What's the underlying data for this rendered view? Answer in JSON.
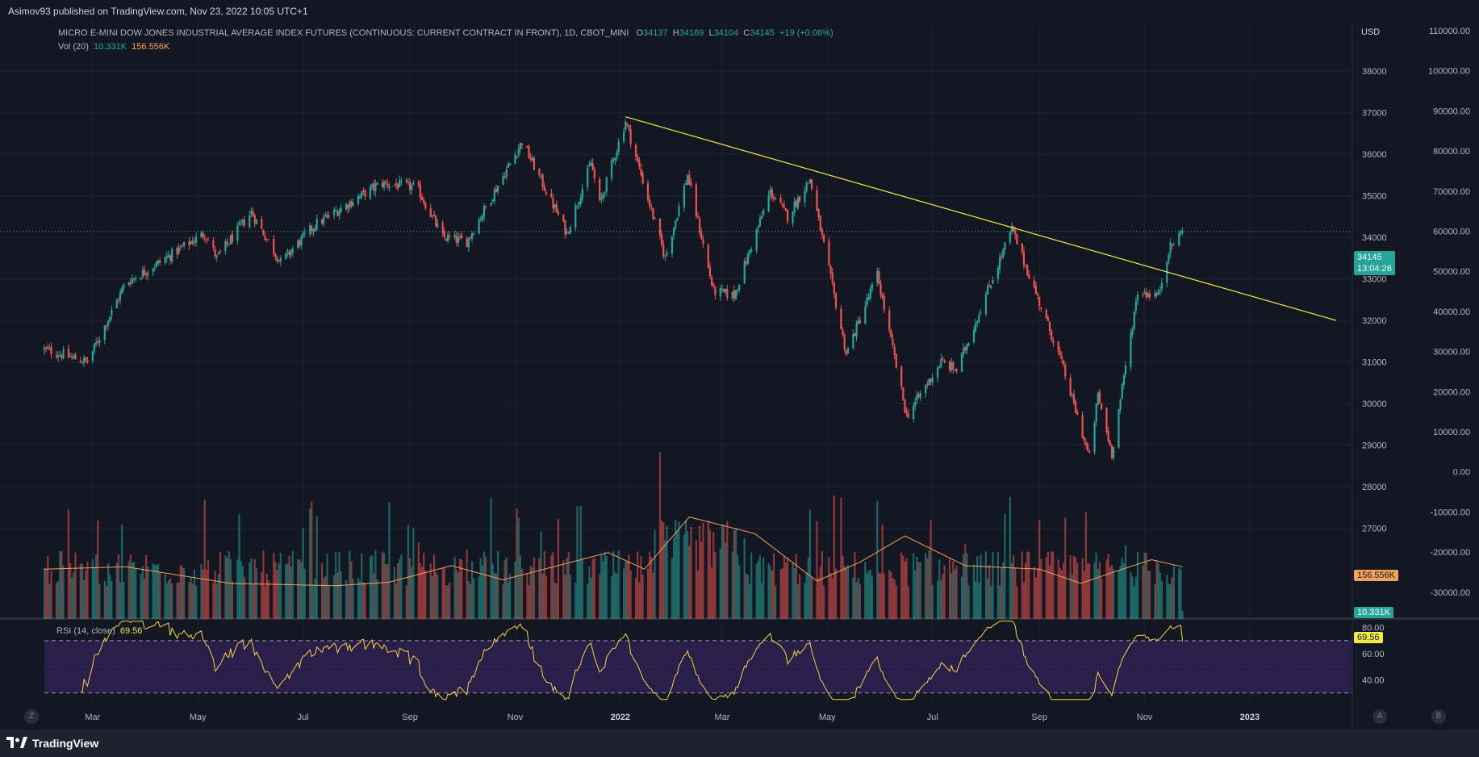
{
  "publish_info": "Asimov93 published on TradingView.com, Nov 23, 2022 10:05 UTC+1",
  "legend": {
    "symbol": "MICRO E-MINI DOW JONES INDUSTRIAL AVERAGE INDEX FUTURES (CONTINUOUS: CURRENT CONTRACT IN FRONT), 1D, CBOT_MINI",
    "o_label": "O",
    "o_value": "34137",
    "h_label": "H",
    "h_value": "34169",
    "l_label": "L",
    "l_value": "34104",
    "c_label": "C",
    "c_value": "34145",
    "change": "+19 (+0.06%)",
    "vol_label": "Vol (20)",
    "vol_value": "10.331K",
    "vol_ma_value": "156.556K",
    "rsi_label": "RSI (14, close)",
    "rsi_value": "69.56"
  },
  "price_tag": {
    "price": "34145",
    "countdown": "13:04:26"
  },
  "volume_tags": {
    "ma": "156.556K",
    "vol": "10.331K"
  },
  "rsi_tag": "69.56",
  "currency": "USD",
  "corner_buttons": {
    "left": "Z",
    "auto": "A",
    "right": "B"
  },
  "footer": {
    "brand": "TradingView"
  },
  "colors": {
    "background": "#131722",
    "up": "#26a69a",
    "down": "#ef5350",
    "trendline": "#f5e94a",
    "vol_ma": "#f7a25a",
    "rsi_line": "#f5d442",
    "rsi_band": "#2a1e4a"
  },
  "chart_data": [
    {
      "type": "candlestick",
      "title": "",
      "y_axis_labels": [
        "38000",
        "37000",
        "36000",
        "35000",
        "34000",
        "33000",
        "32000",
        "31000",
        "30000",
        "29000",
        "28000",
        "27000"
      ],
      "ylim": [
        26600,
        38800
      ],
      "x_axis_labels": [
        "Mar",
        "May",
        "Jul",
        "Sep",
        "Nov",
        "2022",
        "Mar",
        "May",
        "Jul",
        "Sep",
        "Nov",
        "2023"
      ],
      "x_labels_month_index": [
        2,
        4,
        6,
        8,
        10,
        12,
        14,
        16,
        18,
        20,
        22,
        24
      ],
      "x_start": "2021-02-01",
      "x_end": "2023-03-01",
      "price_anchor_closes": [
        {
          "date": "2021-02-01",
          "close": 31300
        },
        {
          "date": "2021-02-26",
          "close": 31000
        },
        {
          "date": "2021-03-05",
          "close": 31600
        },
        {
          "date": "2021-03-20",
          "close": 32900
        },
        {
          "date": "2021-04-05",
          "close": 33300
        },
        {
          "date": "2021-05-05",
          "close": 34100
        },
        {
          "date": "2021-05-12",
          "close": 33500
        },
        {
          "date": "2021-06-01",
          "close": 34600
        },
        {
          "date": "2021-06-18",
          "close": 33400
        },
        {
          "date": "2021-07-08",
          "close": 34300
        },
        {
          "date": "2021-08-15",
          "close": 35300
        },
        {
          "date": "2021-09-05",
          "close": 35200
        },
        {
          "date": "2021-09-20",
          "close": 34000
        },
        {
          "date": "2021-10-04",
          "close": 33900
        },
        {
          "date": "2021-11-05",
          "close": 36300
        },
        {
          "date": "2021-12-01",
          "close": 34100
        },
        {
          "date": "2021-12-15",
          "close": 35800
        },
        {
          "date": "2021-12-20",
          "close": 34800
        },
        {
          "date": "2022-01-04",
          "close": 36800
        },
        {
          "date": "2022-01-27",
          "close": 33500
        },
        {
          "date": "2022-02-09",
          "close": 35500
        },
        {
          "date": "2022-02-24",
          "close": 32700
        },
        {
          "date": "2022-03-08",
          "close": 32600
        },
        {
          "date": "2022-03-29",
          "close": 35100
        },
        {
          "date": "2022-04-08",
          "close": 34500
        },
        {
          "date": "2022-04-21",
          "close": 35400
        },
        {
          "date": "2022-05-12",
          "close": 31200
        },
        {
          "date": "2022-05-30",
          "close": 33100
        },
        {
          "date": "2022-06-16",
          "close": 29700
        },
        {
          "date": "2022-07-06",
          "close": 31000
        },
        {
          "date": "2022-07-15",
          "close": 30800
        },
        {
          "date": "2022-08-16",
          "close": 34200
        },
        {
          "date": "2022-09-13",
          "close": 31100
        },
        {
          "date": "2022-09-30",
          "close": 28700
        },
        {
          "date": "2022-10-05",
          "close": 30200
        },
        {
          "date": "2022-10-13",
          "close": 28800
        },
        {
          "date": "2022-10-28",
          "close": 32700
        },
        {
          "date": "2022-11-09",
          "close": 32600
        },
        {
          "date": "2022-11-15",
          "close": 33700
        },
        {
          "date": "2022-11-23",
          "close": 34145
        }
      ],
      "trendline": {
        "start": {
          "date": "2022-01-04",
          "price": 36900
        },
        "end": {
          "date": "2023-02-20",
          "price": 32000
        }
      },
      "last_price": 34145
    },
    {
      "type": "bar",
      "title": "",
      "series": [
        {
          "name": "Vol (20)"
        },
        {
          "name": "156.556K"
        }
      ],
      "y_axis_labels": [
        "110000.00",
        "100000.00",
        "90000.00",
        "80000.00",
        "70000.00",
        "60000.00",
        "50000.00",
        "40000.00",
        "30000.00",
        "20000.00",
        "10000.00",
        "0.00",
        "-10000.00",
        "-20000.00",
        "-30000.00"
      ],
      "ylim": [
        -32500,
        112500
      ],
      "volume_ma_anchors": [
        {
          "date": "2021-02-01",
          "value": 0.42
        },
        {
          "date": "2021-03-20",
          "value": 0.44
        },
        {
          "date": "2021-05-20",
          "value": 0.3
        },
        {
          "date": "2021-07-20",
          "value": 0.28
        },
        {
          "date": "2021-08-20",
          "value": 0.31
        },
        {
          "date": "2021-09-25",
          "value": 0.45
        },
        {
          "date": "2021-10-25",
          "value": 0.33
        },
        {
          "date": "2021-12-25",
          "value": 0.56
        },
        {
          "date": "2022-01-15",
          "value": 0.42
        },
        {
          "date": "2022-02-10",
          "value": 0.86
        },
        {
          "date": "2022-03-20",
          "value": 0.72
        },
        {
          "date": "2022-04-25",
          "value": 0.32
        },
        {
          "date": "2022-05-20",
          "value": 0.48
        },
        {
          "date": "2022-06-15",
          "value": 0.7
        },
        {
          "date": "2022-07-20",
          "value": 0.45
        },
        {
          "date": "2022-09-01",
          "value": 0.42
        },
        {
          "date": "2022-09-25",
          "value": 0.3
        },
        {
          "date": "2022-10-15",
          "value": 0.4
        },
        {
          "date": "2022-11-05",
          "value": 0.5
        },
        {
          "date": "2022-11-23",
          "value": 0.44
        }
      ]
    },
    {
      "type": "line",
      "title": "",
      "series": [
        {
          "name": "RSI (14, close)"
        }
      ],
      "y_axis_labels": [
        "80.00",
        "60.00",
        "40.00"
      ],
      "ylim": [
        23,
        86
      ],
      "bands": [
        30,
        70
      ],
      "last_value": 69.56
    }
  ]
}
